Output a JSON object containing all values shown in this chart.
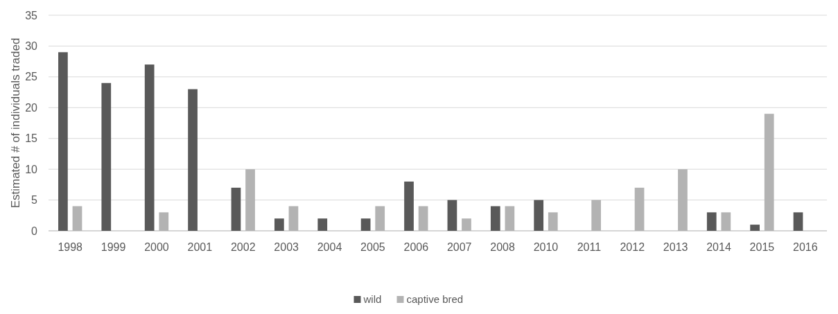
{
  "chart_data": {
    "type": "bar",
    "ylabel": "Estimated # of individuals traded",
    "categories": [
      "1998",
      "1999",
      "2000",
      "2001",
      "2002",
      "2003",
      "2004",
      "2005",
      "2006",
      "2007",
      "2008",
      "2010",
      "2011",
      "2012",
      "2013",
      "2014",
      "2015",
      "2016"
    ],
    "series": [
      {
        "name": "wild",
        "color": "#595959",
        "values": [
          29,
          24,
          27,
          23,
          7,
          2,
          2,
          2,
          8,
          5,
          4,
          5,
          0,
          0,
          0,
          3,
          1,
          3
        ]
      },
      {
        "name": "captive bred",
        "color": "#b3b3b3",
        "values": [
          4,
          0,
          3,
          0,
          10,
          4,
          0,
          4,
          4,
          2,
          4,
          3,
          5,
          7,
          10,
          3,
          19,
          0
        ]
      }
    ],
    "ylim": [
      0,
      35
    ],
    "yticks": [
      0,
      5,
      10,
      15,
      20,
      25,
      30,
      35
    ],
    "grid": "y",
    "legend": "bottom"
  }
}
